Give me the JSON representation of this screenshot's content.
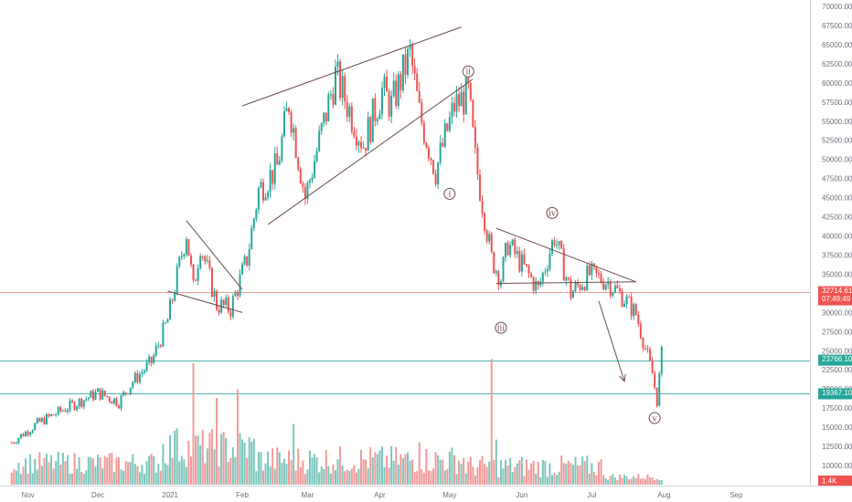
{
  "chart_data": {
    "type": "candlestick",
    "instrument_hint": "price / volume candlestick chart",
    "x_ticks": [
      "Nov",
      "Dec",
      "2021",
      "Feb",
      "Mar",
      "Apr",
      "May",
      "Jun",
      "Jul",
      "Aug",
      "Sep"
    ],
    "y_ticks": [
      "70000.00",
      "67500.00",
      "65000.00",
      "62500.00",
      "60000.00",
      "57500.00",
      "55000.00",
      "52500.00",
      "50000.00",
      "47500.00",
      "45000.00",
      "42500.00",
      "40000.00",
      "37500.00",
      "35000.00",
      "32500.00",
      "30000.00",
      "27500.00",
      "25000.00",
      "22500.00",
      "20000.00",
      "17500.00",
      "15000.00",
      "12500.00",
      "10000.00"
    ],
    "ylim": [
      9000,
      70500
    ],
    "y_scale": "linear",
    "grid": false,
    "colors": {
      "up": "#26a69a",
      "down": "#ef5350",
      "drawing": "#6d4c4c",
      "badge_red": "#ef5350",
      "badge_green": "#26a69a"
    },
    "price_path": [
      {
        "date": "2020-10-25",
        "price": 13000
      },
      {
        "date": "2020-11-05",
        "price": 15500
      },
      {
        "date": "2020-11-20",
        "price": 17900
      },
      {
        "date": "2020-12-01",
        "price": 19500
      },
      {
        "date": "2020-12-10",
        "price": 18300
      },
      {
        "date": "2020-12-16",
        "price": 21000
      },
      {
        "date": "2020-12-24",
        "price": 23500
      },
      {
        "date": "2020-12-31",
        "price": 29000
      },
      {
        "date": "2021-01-08",
        "price": 40500
      },
      {
        "date": "2021-01-11",
        "price": 33000
      },
      {
        "date": "2021-01-14",
        "price": 39000
      },
      {
        "date": "2021-01-21",
        "price": 31000
      },
      {
        "date": "2021-01-27",
        "price": 30500
      },
      {
        "date": "2021-02-03",
        "price": 37000
      },
      {
        "date": "2021-02-08",
        "price": 46000
      },
      {
        "date": "2021-02-16",
        "price": 49000
      },
      {
        "date": "2021-02-21",
        "price": 57500
      },
      {
        "date": "2021-02-28",
        "price": 45000
      },
      {
        "date": "2021-03-13",
        "price": 61000
      },
      {
        "date": "2021-03-25",
        "price": 52000
      },
      {
        "date": "2021-04-02",
        "price": 59000
      },
      {
        "date": "2021-04-06",
        "price": 57000
      },
      {
        "date": "2021-04-14",
        "price": 63800
      },
      {
        "date": "2021-04-18",
        "price": 56000
      },
      {
        "date": "2021-04-25",
        "price": 48500
      },
      {
        "date": "2021-05-03",
        "price": 57000
      },
      {
        "date": "2021-05-09",
        "price": 58500
      },
      {
        "date": "2021-05-12",
        "price": 50000
      },
      {
        "date": "2021-05-19",
        "price": 37000
      },
      {
        "date": "2021-05-23",
        "price": 34500
      },
      {
        "date": "2021-05-26",
        "price": 39000
      },
      {
        "date": "2021-06-08",
        "price": 33000
      },
      {
        "date": "2021-06-15",
        "price": 40000
      },
      {
        "date": "2021-06-22",
        "price": 32500
      },
      {
        "date": "2021-06-30",
        "price": 35000
      },
      {
        "date": "2021-07-08",
        "price": 34000
      },
      {
        "date": "2021-07-15",
        "price": 31800
      },
      {
        "date": "2021-07-20",
        "price": 29800
      },
      {
        "date": "2021-07-27",
        "price": 22000
      },
      {
        "date": "2021-07-29",
        "price": 18500
      },
      {
        "date": "2021-07-31",
        "price": 24500
      }
    ],
    "trendlines": [
      {
        "from": {
          "date": "2021-01-08",
          "price": 42000
        },
        "to": {
          "date": "2021-02-01",
          "price": 33000
        }
      },
      {
        "from": {
          "date": "2020-12-31",
          "price": 32800
        },
        "to": {
          "date": "2021-02-01",
          "price": 30000
        }
      },
      {
        "from": {
          "date": "2021-02-01",
          "price": 57000
        },
        "to": {
          "date": "2021-05-06",
          "price": 67300
        }
      },
      {
        "from": {
          "date": "2021-02-12",
          "price": 41500
        },
        "to": {
          "date": "2021-05-11",
          "price": 60500
        }
      },
      {
        "from": {
          "date": "2021-05-21",
          "price": 41000
        },
        "to": {
          "date": "2021-07-20",
          "price": 34000
        }
      },
      {
        "from": {
          "date": "2021-05-21",
          "price": 33800
        },
        "to": {
          "date": "2021-07-20",
          "price": 34000
        }
      }
    ],
    "arrow": {
      "from": {
        "date": "2021-07-04",
        "price": 31500
      },
      "to": {
        "date": "2021-07-15",
        "price": 21000
      }
    },
    "wave_labels": [
      {
        "text": "i",
        "date": "2021-05-01",
        "price": 45500
      },
      {
        "text": "ii",
        "date": "2021-05-09",
        "price": 61500
      },
      {
        "text": "iii",
        "date": "2021-05-23",
        "price": 28000
      },
      {
        "text": "iv",
        "date": "2021-06-14",
        "price": 43000
      },
      {
        "text": "v",
        "date": "2021-07-28",
        "price": 16200
      }
    ],
    "horizontal_lines": [
      {
        "price": 32714.61,
        "color": "#ef9a9a"
      },
      {
        "price": 23766.1,
        "color": "#4db6ac"
      },
      {
        "price": 19367.1,
        "color": "#4db6ac"
      }
    ],
    "price_badges": [
      {
        "lines": [
          "32714.61",
          "07:49:49"
        ],
        "price": 32714.61,
        "color": "#ef5350"
      },
      {
        "lines": [
          "23766.10"
        ],
        "price": 23766.1,
        "color": "#26a69a"
      },
      {
        "lines": [
          "19367.10"
        ],
        "price": 19367.1,
        "color": "#26a69a"
      }
    ],
    "volume": {
      "max_label": "1.4K",
      "max_value": 1400,
      "spikes": [
        {
          "date": "2021-01-11",
          "value": 1400
        },
        {
          "date": "2021-01-21",
          "value": 1000
        },
        {
          "date": "2021-01-30",
          "value": 1100
        },
        {
          "date": "2021-05-19",
          "value": 1450
        },
        {
          "date": "2021-05-21",
          "value": 520
        },
        {
          "date": "2021-04-18",
          "value": 490
        },
        {
          "date": "2021-02-23",
          "value": 700
        },
        {
          "date": "2021-01-04",
          "value": 650
        }
      ]
    }
  }
}
